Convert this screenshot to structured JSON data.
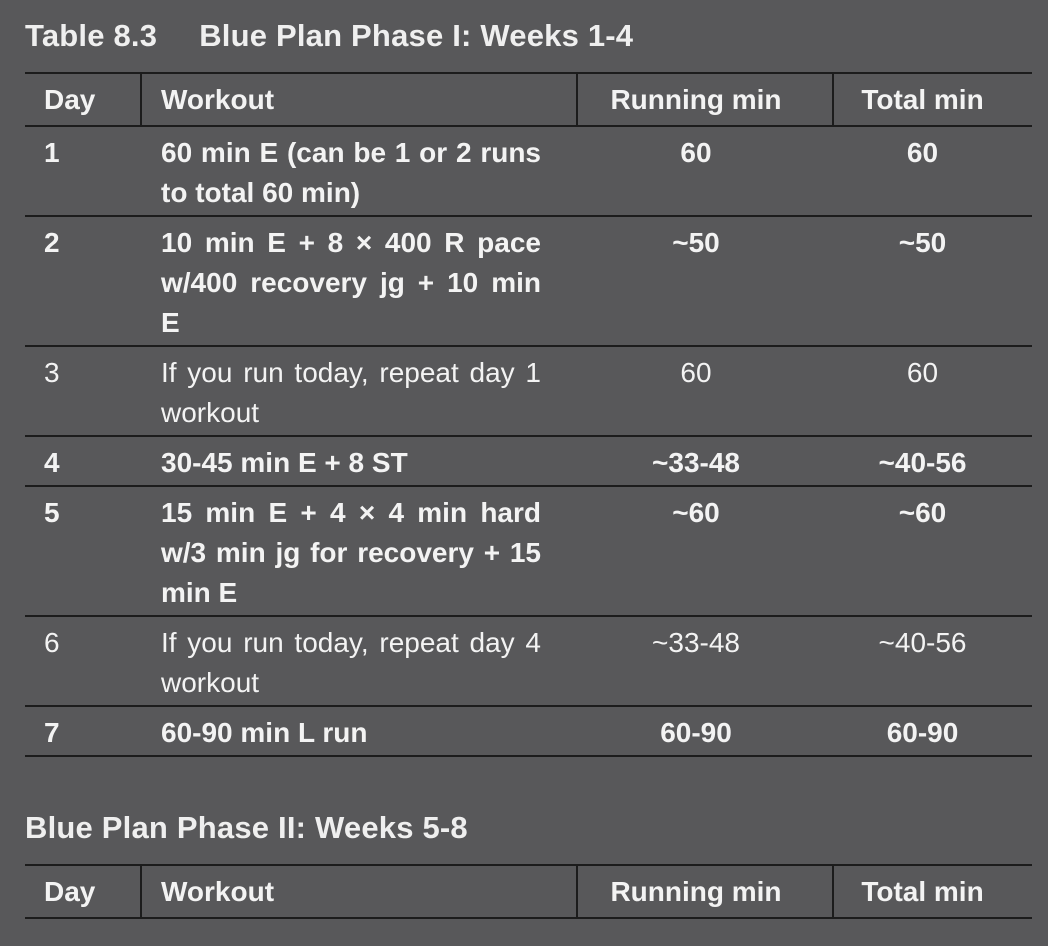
{
  "table1": {
    "number": "Table 8.3",
    "title": "Blue Plan Phase I: Weeks 1-4",
    "headers": {
      "day": "Day",
      "workout": "Workout",
      "running": "Running min",
      "total": "Total min"
    },
    "rows": [
      {
        "day": "1",
        "workout": "60 min E (can be 1 or 2 runs to total 60 min)",
        "running": "60",
        "total": "60",
        "bold": true
      },
      {
        "day": "2",
        "workout": "10 min E + 8 × 400 R pace w/400 recovery jg + 10 min E",
        "running": "~50",
        "total": "~50",
        "bold": true
      },
      {
        "day": "3",
        "workout": "If you run today, repeat day 1 workout",
        "running": "60",
        "total": "60",
        "bold": false
      },
      {
        "day": "4",
        "workout": "30-45 min E + 8 ST",
        "running": "~33-48",
        "total": "~40-56",
        "bold": true
      },
      {
        "day": "5",
        "workout": "15 min E + 4 × 4 min hard w/3 min jg for recovery + 15 min E",
        "running": "~60",
        "total": "~60",
        "bold": true
      },
      {
        "day": "6",
        "workout": "If you run today, repeat day 4 workout",
        "running": "~33-48",
        "total": "~40-56",
        "bold": false
      },
      {
        "day": "7",
        "workout": "60-90 min L run",
        "running": "60-90",
        "total": "60-90",
        "bold": true
      }
    ]
  },
  "table2": {
    "title": "Blue Plan Phase II: Weeks 5-8",
    "headers": {
      "day": "Day",
      "workout": "Workout",
      "running": "Running min",
      "total": "Total min"
    }
  }
}
